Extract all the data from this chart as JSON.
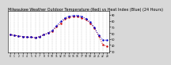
{
  "title": "Milwaukee Weather Outdoor Temperature (Red) vs Heat Index (Blue) (24 Hours)",
  "title_fontsize": 3.5,
  "background_color": "#d8d8d8",
  "plot_bg_color": "#ffffff",
  "x": [
    0,
    1,
    2,
    3,
    4,
    5,
    6,
    7,
    8,
    9,
    10,
    11,
    12,
    13,
    14,
    15,
    16,
    17,
    18,
    19,
    20,
    21,
    22,
    23
  ],
  "temp": [
    57,
    56,
    55,
    54,
    53,
    53,
    52,
    54,
    57,
    60,
    63,
    70,
    76,
    83,
    86,
    87,
    87,
    85,
    82,
    76,
    68,
    55,
    40,
    38
  ],
  "heat": [
    57,
    56,
    55,
    54,
    53,
    53,
    52,
    54,
    57,
    60,
    64,
    72,
    79,
    85,
    88,
    89,
    89,
    87,
    84,
    78,
    69,
    56,
    48,
    48
  ],
  "temp_color": "#cc0000",
  "heat_color": "#0000cc",
  "ylim": [
    28,
    96
  ],
  "ytick_values": [
    30,
    40,
    50,
    60,
    70,
    80,
    90
  ],
  "ytick_labels": [
    "30",
    "40",
    "50",
    "60",
    "70",
    "80",
    "90"
  ],
  "xticks": [
    0,
    1,
    2,
    3,
    4,
    5,
    6,
    7,
    8,
    9,
    10,
    11,
    12,
    13,
    14,
    15,
    16,
    17,
    18,
    19,
    20,
    21,
    22,
    23
  ],
  "grid_color": "#aaaaaa",
  "line_width": 0.7,
  "marker": ".",
  "marker_size": 1.5,
  "linestyle": ":"
}
